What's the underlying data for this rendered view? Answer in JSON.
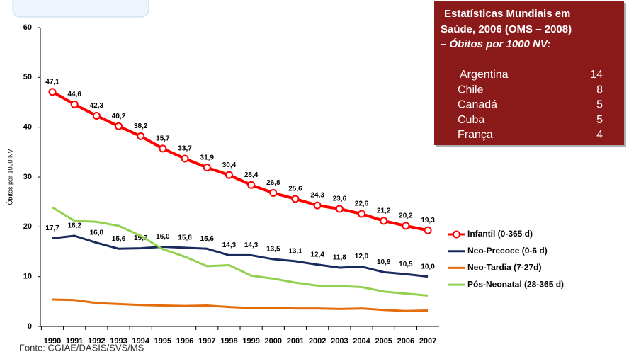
{
  "chart_data": {
    "type": "line",
    "y_label": "Óbitos por 1000 NV",
    "categories": [
      "1990",
      "1991",
      "1992",
      "1993",
      "1994",
      "1995",
      "1996",
      "1997",
      "1998",
      "1999",
      "2000",
      "2001",
      "2002",
      "2003",
      "2004",
      "2005",
      "2006",
      "2007"
    ],
    "ylim": [
      0,
      60
    ],
    "yticks": [
      0,
      10,
      20,
      30,
      40,
      50,
      60
    ],
    "series": [
      {
        "name": "Infantil (0-365 d)",
        "color": "#ff0000",
        "markers": true,
        "values": [
          47.1,
          44.6,
          42.3,
          40.2,
          38.2,
          35.7,
          33.7,
          31.9,
          30.4,
          28.4,
          26.8,
          25.6,
          24.3,
          23.6,
          22.6,
          21.2,
          20.2,
          19.3
        ],
        "value_labels": [
          "47,1",
          "44,6",
          "42,3",
          "40,2",
          "38,2",
          "35,7",
          "33,7",
          "31,9",
          "30,4",
          "28,4",
          "26,8",
          "25,6",
          "24,3",
          "23,6",
          "22,6",
          "21,2",
          "20,2",
          "19,3"
        ]
      },
      {
        "name": "Neo-Precoce (0-6 d)",
        "color": "#1a2a5e",
        "markers": false,
        "values": [
          17.7,
          18.2,
          16.8,
          15.6,
          15.7,
          16.0,
          15.8,
          15.6,
          14.3,
          14.3,
          13.5,
          13.1,
          12.4,
          11.8,
          12.0,
          10.9,
          10.5,
          10.0
        ],
        "value_labels": [
          "17,7",
          "18,2",
          "16,8",
          "15,6",
          "15,7",
          "16,0",
          "15,8",
          "15,6",
          "14,3",
          "14,3",
          "13,5",
          "13,1",
          "12,4",
          "11,8",
          "12,0",
          "10,9",
          "10,5",
          "10,0"
        ]
      },
      {
        "name": "Neo-Tardia (7-27d)",
        "color": "#e46c0a",
        "markers": false,
        "values": [
          5.4,
          5.3,
          4.7,
          4.5,
          4.3,
          4.2,
          4.1,
          4.2,
          3.9,
          3.7,
          3.7,
          3.6,
          3.6,
          3.5,
          3.6,
          3.3,
          3.1,
          3.2
        ]
      },
      {
        "name": "Pós-Neonatal (28-365 d)",
        "color": "#92d050",
        "markers": false,
        "values": [
          23.9,
          21.2,
          21.0,
          20.2,
          18.2,
          15.5,
          14.0,
          12.1,
          12.3,
          10.2,
          9.6,
          8.8,
          8.2,
          8.1,
          7.9,
          7.0,
          6.6,
          6.2
        ]
      }
    ]
  },
  "info_box": {
    "title_lines": [
      "Estatísticas Mundiais em",
      "Saúde,  2006   (OMS – 2008)"
    ],
    "subtitle": "– Óbitos por 1000 NV:",
    "rows": [
      [
        "Argentina",
        "14"
      ],
      [
        "Chile",
        "8"
      ],
      [
        "Canadá",
        "5"
      ],
      [
        "Cuba",
        "5"
      ],
      [
        "França",
        "4"
      ]
    ]
  },
  "source": "Fonte: CGIAE/DASIS/SVS/MS"
}
